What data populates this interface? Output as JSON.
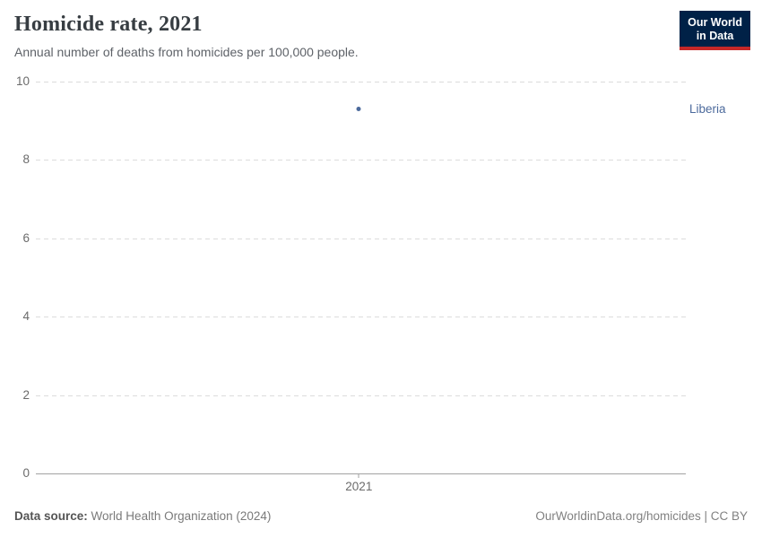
{
  "header": {
    "title": "Homicide rate, 2021",
    "subtitle": "Annual number of deaths from homicides per 100,000 people.",
    "logo": {
      "line1": "Our World",
      "line2": "in Data"
    }
  },
  "chart_data": {
    "type": "scatter",
    "title": "Homicide rate, 2021",
    "categories": [
      "2021"
    ],
    "series": [
      {
        "name": "Liberia",
        "values": [
          9.3
        ]
      }
    ],
    "xlabel": "",
    "ylabel": "",
    "ylim": [
      0,
      10
    ],
    "yticks": [
      0,
      2,
      4,
      6,
      8,
      10
    ],
    "xtick_labels": [
      "2021"
    ],
    "grid": "horizontal-dashed",
    "legend_position": "right-of-point",
    "entity_label": "Liberia",
    "point_color": "#4c6a9c",
    "entity_label_color": "#4c6a9c"
  },
  "footer": {
    "source_label": "Data source:",
    "source_value": "World Health Organization (2024)",
    "link_text": "OurWorldinData.org/homicides | CC BY"
  },
  "colors": {
    "accent_navy": "#002147",
    "accent_red": "#c62828",
    "gridline": "#dcdcdc",
    "axis_line": "#a2a2a2",
    "tick_text": "#6b6b6b"
  }
}
